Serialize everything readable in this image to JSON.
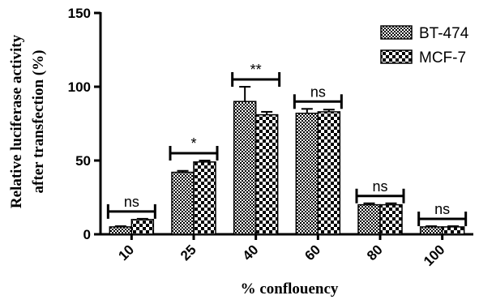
{
  "chart_data": {
    "type": "bar",
    "categories": [
      "10",
      "25",
      "40",
      "60",
      "80",
      "100"
    ],
    "series": [
      {
        "name": "BT-474",
        "values": [
          5,
          42,
          90,
          82,
          20,
          5
        ],
        "errors": [
          0.5,
          1,
          10,
          3,
          1,
          0.5
        ],
        "pattern": "checker-fine"
      },
      {
        "name": "MCF-7",
        "values": [
          10,
          49,
          81,
          83,
          20,
          5
        ],
        "errors": [
          0.5,
          1,
          2,
          1.5,
          1,
          0.5
        ],
        "pattern": "checker-coarse"
      }
    ],
    "significance": [
      "ns",
      "*",
      "**",
      "ns",
      "ns",
      "ns"
    ],
    "xlabel": "% conflouency",
    "ylabel_lines": [
      "Relative luciferase  activity",
      "after transfection (%)"
    ],
    "ylim": [
      0,
      150
    ],
    "yticks": [
      0,
      50,
      100,
      150
    ],
    "legend_position": "top-right",
    "grid": false,
    "colors": {
      "axis": "#000000",
      "bar_fill_dark": "#000000",
      "bar_fill_light": "#ffffff"
    }
  }
}
